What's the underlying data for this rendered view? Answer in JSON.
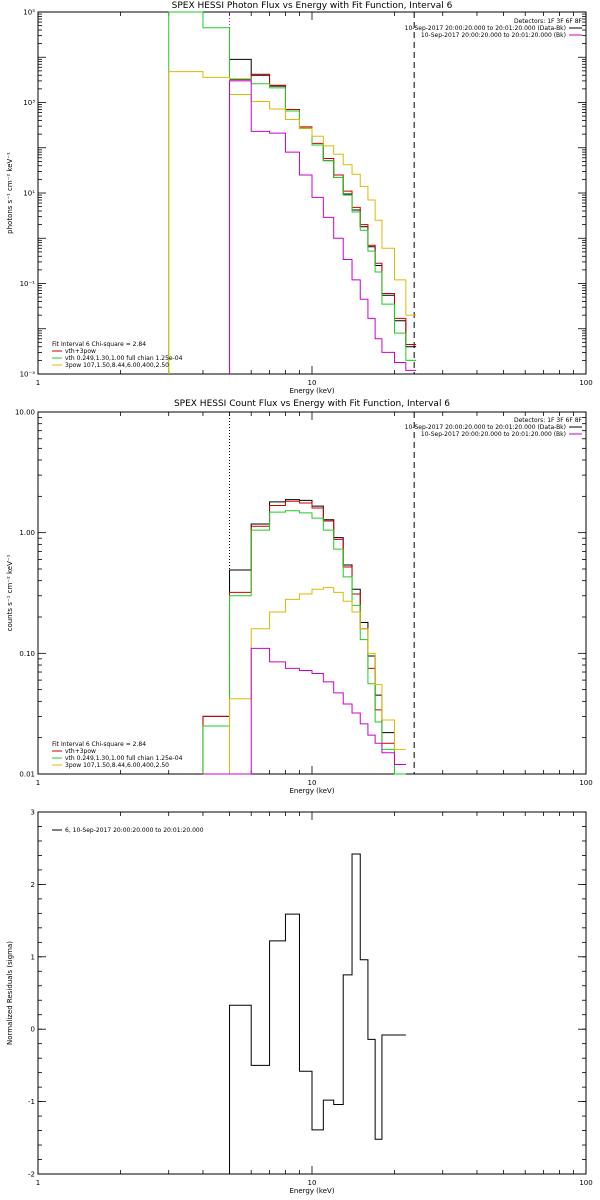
{
  "chart_data": [
    {
      "type": "line",
      "title": "SPEX HESSI Photon Flux vs Energy with Fit Function, Interval 6",
      "xlabel": "Energy (keV)",
      "ylabel": "photons s⁻¹ cm⁻² keV⁻¹",
      "xscale": "log",
      "yscale": "log",
      "xlim": [
        1,
        100
      ],
      "ylim": [
        0.001,
        100000
      ],
      "xticks": [
        {
          "v": 1,
          "t": "1"
        },
        {
          "v": 10,
          "t": "10"
        },
        {
          "v": 100,
          "t": "100"
        }
      ],
      "yticks": [
        {
          "v": 0.001,
          "t": "10⁻³"
        },
        {
          "v": 0.1,
          "t": "10⁻¹"
        },
        {
          "v": 10,
          "t": "10¹"
        },
        {
          "v": 1000,
          "t": "10³"
        },
        {
          "v": 100000,
          "t": "10⁵"
        }
      ],
      "vlines": [
        {
          "x": 5.0,
          "style": "dotted",
          "color": "#cc00cc"
        },
        {
          "x": 23.6,
          "style": "dashed",
          "color": "#000000"
        }
      ],
      "top_right": [
        "Detectors: 1F 3F 6F 8F",
        "10-Sep-2017 20:00:20.000 to 20:01:20.000 (Data-Bk)",
        "10-Sep-2017 20:00:20.000 to 20:01:20.000 (Bk)"
      ],
      "top_right_colors": [
        "#000000",
        "#000000",
        "#cc00cc"
      ],
      "legend_header": "Fit Interval 6   Chi-square = 2.84",
      "legend": [
        {
          "label": "vth+3pow",
          "color": "#cc0000"
        },
        {
          "label": "vth 0.249,1.30,1.00  full chian 1.25e-04",
          "color": "#22cc22"
        },
        {
          "label": "3pow 107,1.50,8.44,6.00,400,2.50",
          "color": "#ddbb00"
        }
      ],
      "edges": [
        3.0,
        4.0,
        5.0,
        6.0,
        7.0,
        8.0,
        9.0,
        10.0,
        11.0,
        12.0,
        13.0,
        14.0,
        15.0,
        16.0,
        17.0,
        18.0,
        20.0,
        22.0,
        24.0
      ],
      "series": [
        {
          "color": "#000000",
          "values": [
            null,
            null,
            9000,
            4000,
            2300,
            650,
            270,
            115,
            52,
            22,
            9.5,
            4.2,
            1.8,
            0.65,
            0.25,
            0.055,
            0.015,
            0.004
          ]
        },
        {
          "color": "#cc0000",
          "values": [
            null,
            null,
            3200,
            4200,
            2400,
            700,
            290,
            125,
            58,
            25,
            11,
            4.8,
            2.0,
            0.7,
            0.28,
            0.06,
            0.017,
            0.0045
          ]
        },
        {
          "color": "#22cc22",
          "values": [
            100000,
            45000,
            3300,
            2600,
            2100,
            650,
            270,
            115,
            52,
            22,
            9.0,
            3.8,
            1.5,
            0.52,
            0.18,
            0.035,
            0.008,
            0.002
          ]
        },
        {
          "color": "#ddbb00",
          "values": [
            4800,
            3600,
            1500,
            1050,
            720,
            420,
            270,
            180,
            110,
            72,
            42,
            26,
            14,
            7.0,
            2.5,
            0.6,
            0.12,
            0.02
          ]
        },
        {
          "color": "#cc00cc",
          "values": [
            null,
            null,
            3000,
            230,
            210,
            80,
            25,
            8,
            2.9,
            1.0,
            0.34,
            0.12,
            0.045,
            0.017,
            0.006,
            0.003,
            0.0018,
            0.0012
          ]
        }
      ]
    },
    {
      "type": "line",
      "title": "SPEX HESSI Count Flux vs Energy with Fit Function, Interval 6",
      "xlabel": "Energy (keV)",
      "ylabel": "counts s⁻¹ cm⁻² keV⁻¹",
      "xscale": "log",
      "yscale": "log",
      "xlim": [
        1,
        100
      ],
      "ylim": [
        0.01,
        10
      ],
      "xticks": [
        {
          "v": 1,
          "t": "1"
        },
        {
          "v": 10,
          "t": "10"
        },
        {
          "v": 100,
          "t": "100"
        }
      ],
      "yticks": [
        {
          "v": 0.01,
          "t": "0.01"
        },
        {
          "v": 0.1,
          "t": "0.10"
        },
        {
          "v": 1,
          "t": "1.00"
        },
        {
          "v": 10,
          "t": "10.00"
        }
      ],
      "vlines": [
        {
          "x": 5.0,
          "style": "dotted",
          "color": "#000000"
        },
        {
          "x": 23.6,
          "style": "dashed",
          "color": "#000000"
        }
      ],
      "top_right": [
        "Detectors: 1F 3F 6F 8F",
        "10-Sep-2017 20:00:20.000 to 20:01:20.000 (Data-Bk)",
        "10-Sep-2017 20:00:20.000 to 20:01:20.000 (Bk)"
      ],
      "top_right_colors": [
        "#000000",
        "#000000",
        "#cc00cc"
      ],
      "legend_header": "Fit Interval 6   Chi-square = 2.84",
      "legend": [
        {
          "label": "vth+3pow",
          "color": "#cc0000"
        },
        {
          "label": "vth 0.249,1.30,1.00  full chian 1.25e-04",
          "color": "#22cc22"
        },
        {
          "label": "3pow 107,1.50,8.44,6.00,400,2.50",
          "color": "#ddbb00"
        }
      ],
      "edges": [
        4.0,
        5.0,
        6.0,
        7.0,
        8.0,
        9.0,
        10.0,
        11.0,
        12.0,
        13.0,
        14.0,
        15.0,
        16.0,
        17.0,
        18.0,
        20.0,
        22.0,
        24.0
      ],
      "series": [
        {
          "color": "#000000",
          "values": [
            0.03,
            0.49,
            1.18,
            1.8,
            1.88,
            1.85,
            1.66,
            1.28,
            0.91,
            0.54,
            0.34,
            0.18,
            0.095,
            0.045,
            0.022,
            0.012
          ]
        },
        {
          "color": "#cc0000",
          "values": [
            0.03,
            0.32,
            1.13,
            1.68,
            1.82,
            1.76,
            1.6,
            1.25,
            0.88,
            0.52,
            0.31,
            0.16,
            0.075,
            0.034,
            0.018,
            0.01
          ]
        },
        {
          "color": "#22cc22",
          "values": [
            0.025,
            0.3,
            1.05,
            1.48,
            1.52,
            1.46,
            1.32,
            1.05,
            0.73,
            0.43,
            0.25,
            0.13,
            0.056,
            0.027,
            0.016,
            0.008
          ]
        },
        {
          "color": "#ddbb00",
          "values": [
            0.01,
            0.042,
            0.16,
            0.22,
            0.28,
            0.31,
            0.34,
            0.35,
            0.32,
            0.27,
            0.22,
            0.16,
            0.1,
            0.055,
            0.028,
            0.016
          ]
        },
        {
          "color": "#cc00cc",
          "values": [
            0.01,
            0.01,
            0.11,
            0.085,
            0.075,
            0.072,
            0.068,
            0.058,
            0.047,
            0.038,
            0.032,
            0.026,
            0.021,
            0.018,
            0.015,
            0.012
          ]
        }
      ]
    },
    {
      "type": "line",
      "title": "",
      "xlabel": "Energy (keV)",
      "ylabel": "Normalized Residuals (sigma)",
      "xscale": "log",
      "yscale": "linear",
      "xlim": [
        1,
        100
      ],
      "ylim": [
        -2,
        3
      ],
      "xticks": [
        {
          "v": 1,
          "t": "1"
        },
        {
          "v": 10,
          "t": "10"
        },
        {
          "v": 100,
          "t": "100"
        }
      ],
      "yticks": [
        {
          "v": -2,
          "t": "-2"
        },
        {
          "v": -1,
          "t": "-1"
        },
        {
          "v": 0,
          "t": "0"
        },
        {
          "v": 1,
          "t": "1"
        },
        {
          "v": 2,
          "t": "2"
        },
        {
          "v": 3,
          "t": "3"
        }
      ],
      "vlines": [],
      "top_right": [],
      "top_right_colors": [],
      "legend_header": "",
      "legend": [
        {
          "label": "6, 10-Sep-2017 20:00:20.000 to 20:01:20.000",
          "color": "#000000"
        }
      ],
      "edges": [
        5.0,
        6.0,
        7.0,
        8.0,
        9.0,
        10.0,
        11.0,
        12.0,
        13.0,
        14.0,
        15.0,
        16.0,
        17.0,
        18.0,
        20.0,
        22.0
      ],
      "series": [
        {
          "color": "#000000",
          "values": [
            0.33,
            -0.5,
            1.22,
            1.59,
            -0.58,
            -1.39,
            -0.98,
            -1.04,
            0.75,
            2.42,
            0.96,
            -0.14,
            -1.52,
            -0.08,
            -0.08
          ]
        }
      ]
    }
  ]
}
